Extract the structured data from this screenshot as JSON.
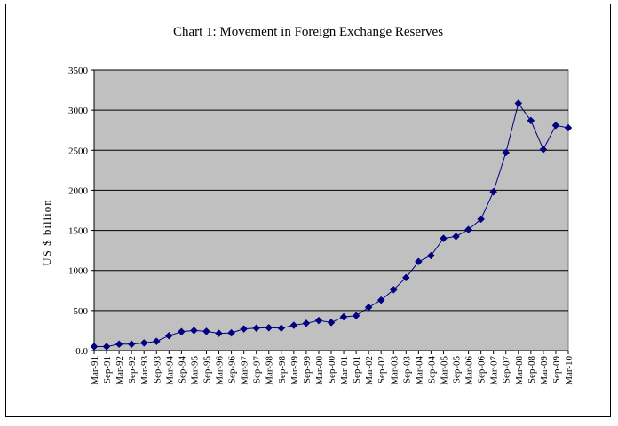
{
  "chart_data": {
    "type": "line",
    "title": "Chart 1: Movement in Foreign Exchange Reserves",
    "xlabel": "",
    "ylabel": "US $ billion",
    "ylim": [
      0,
      3500
    ],
    "yticks": [
      "0.0",
      "500",
      "1000",
      "1500",
      "2000",
      "2500",
      "3000",
      "3500"
    ],
    "grid": true,
    "legend": "none",
    "colors": {
      "line": "#000080",
      "plot_bg": "#c0c0c0",
      "grid": "#000000"
    },
    "categories": [
      "Mar-91",
      "Sep-91",
      "Mar-92",
      "Sep-92",
      "Mar-93",
      "Sep-93",
      "Mar-94",
      "Sep-94",
      "Mar-95",
      "Sep-95",
      "Mar-96",
      "Sep-96",
      "Mar-97",
      "Sep-97",
      "Mar-98",
      "Sep-98",
      "Mar-99",
      "Sep-99",
      "Mar-00",
      "Sep-00",
      "Mar-01",
      "Sep-01",
      "Mar-02",
      "Sep-02",
      "Mar-03",
      "Sep-03",
      "Mar-04",
      "Sep-04",
      "Mar-05",
      "Sep-05",
      "Mar-06",
      "Sep-06",
      "Mar-07",
      "Sep-07",
      "Mar-08",
      "Sep-08",
      "Mar-09",
      "Sep-09",
      "Mar-10"
    ],
    "series": [
      {
        "values": [
          50,
          50,
          80,
          80,
          95,
          115,
          185,
          235,
          250,
          240,
          215,
          220,
          270,
          280,
          285,
          280,
          315,
          340,
          375,
          350,
          420,
          435,
          540,
          630,
          760,
          910,
          1110,
          1185,
          1400,
          1425,
          1510,
          1640,
          1980,
          2470,
          3085,
          2870,
          2510,
          2810,
          2780
        ]
      }
    ]
  }
}
